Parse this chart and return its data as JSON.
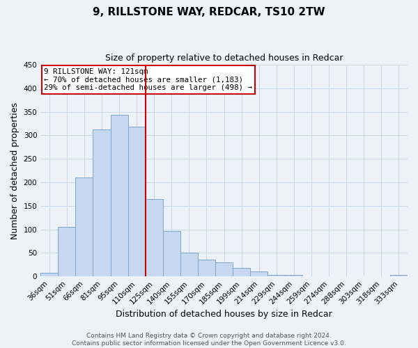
{
  "title": "9, RILLSTONE WAY, REDCAR, TS10 2TW",
  "subtitle": "Size of property relative to detached houses in Redcar",
  "xlabel": "Distribution of detached houses by size in Redcar",
  "ylabel": "Number of detached properties",
  "categories": [
    "36sqm",
    "51sqm",
    "66sqm",
    "81sqm",
    "95sqm",
    "110sqm",
    "125sqm",
    "140sqm",
    "155sqm",
    "170sqm",
    "185sqm",
    "199sqm",
    "214sqm",
    "229sqm",
    "244sqm",
    "259sqm",
    "274sqm",
    "288sqm",
    "303sqm",
    "318sqm",
    "333sqm"
  ],
  "values": [
    7,
    105,
    210,
    313,
    344,
    318,
    165,
    97,
    50,
    36,
    30,
    18,
    10,
    4,
    4,
    0,
    0,
    0,
    0,
    0,
    3
  ],
  "bar_color": "#c5d8f0",
  "bar_edge_color": "#7aa8d4",
  "grid_color": "#c8d8e8",
  "vline_color": "#cc0000",
  "annotation_line1": "9 RILLSTONE WAY: 121sqm",
  "annotation_line2": "← 70% of detached houses are smaller (1,183)",
  "annotation_line3": "29% of semi-detached houses are larger (498) →",
  "annotation_box_color": "#ffffff",
  "annotation_box_edge": "#cc0000",
  "ylim": [
    0,
    450
  ],
  "yticks": [
    0,
    50,
    100,
    150,
    200,
    250,
    300,
    350,
    400,
    450
  ],
  "footer_line1": "Contains HM Land Registry data © Crown copyright and database right 2024.",
  "footer_line2": "Contains public sector information licensed under the Open Government Licence v3.0.",
  "title_fontsize": 11,
  "subtitle_fontsize": 9,
  "axis_label_fontsize": 9,
  "tick_fontsize": 7.5,
  "annotation_fontsize": 7.8,
  "footer_fontsize": 6.5,
  "background_color": "#edf2f9"
}
